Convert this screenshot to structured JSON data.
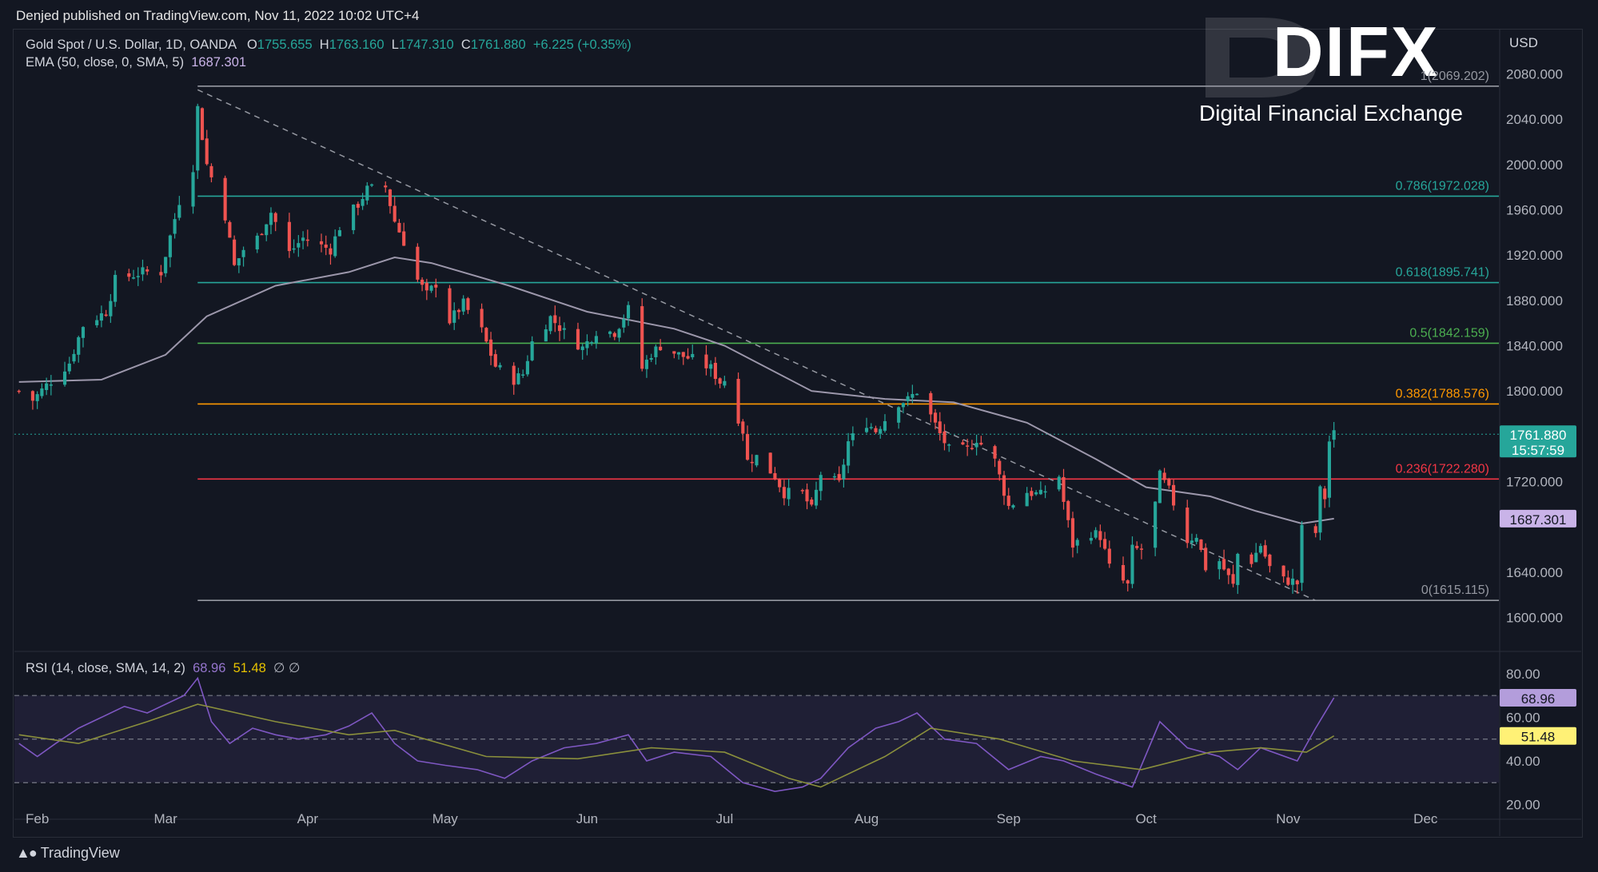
{
  "header": {
    "publisher_line": "Denjed published on TradingView.com, Nov 11, 2022 10:02 UTC+4"
  },
  "legend": {
    "symbol_line": "Gold Spot / U.S. Dollar, 1D, OANDA",
    "o_label": "O",
    "o_value": "1755.655",
    "h_label": "H",
    "h_value": "1763.160",
    "l_label": "L",
    "l_value": "1747.310",
    "c_label": "C",
    "c_value": "1761.880",
    "change": "+6.225 (+0.35%)",
    "ema_label": "EMA (50, close, 0, SMA, 5)",
    "ema_value": "1687.301"
  },
  "currency": "USD",
  "watermark": {
    "brand": "DIFX",
    "tagline": "Digital Financial Exchange"
  },
  "footer": {
    "logo_text": "TradingView",
    "logo_icon": "tradingview-logo-icon"
  },
  "colors": {
    "background": "#131722",
    "up": "#26a69a",
    "down": "#ef5350",
    "ema": "#9c97ab",
    "rsi": "#7e57c2",
    "rsi_ma": "#8a8f3c",
    "price_tag": "#26a69a",
    "ema_tag": "#c9b3e8",
    "rsi_tag": "#b39ddb",
    "rsi_ma_tag": "#fff176"
  },
  "chart_data": {
    "type": "candlestick",
    "title": "Gold Spot / U.S. Dollar, 1D, OANDA",
    "ylim": [
      1575,
      2110
    ],
    "yticks": [
      {
        "value": 2080,
        "label": "2080.000"
      },
      {
        "value": 2040,
        "label": "2040.000"
      },
      {
        "value": 2000,
        "label": "2000.000"
      },
      {
        "value": 1960,
        "label": "1960.000"
      },
      {
        "value": 1920,
        "label": "1920.000"
      },
      {
        "value": 1880,
        "label": "1880.000"
      },
      {
        "value": 1840,
        "label": "1840.000"
      },
      {
        "value": 1800,
        "label": "1800.000"
      },
      {
        "value": 1720,
        "label": "1720.000"
      },
      {
        "value": 1640,
        "label": "1640.000"
      },
      {
        "value": 1600,
        "label": "1600.000"
      }
    ],
    "xlim": [
      "2022-01-27",
      "2022-12-17"
    ],
    "x_ticks": [
      {
        "date": "2022-02-01",
        "label": "Feb"
      },
      {
        "date": "2022-03-01",
        "label": "Mar"
      },
      {
        "date": "2022-04-01",
        "label": "Apr"
      },
      {
        "date": "2022-05-01",
        "label": "May"
      },
      {
        "date": "2022-06-01",
        "label": "Jun"
      },
      {
        "date": "2022-07-01",
        "label": "Jul"
      },
      {
        "date": "2022-08-01",
        "label": "Aug"
      },
      {
        "date": "2022-09-01",
        "label": "Sep"
      },
      {
        "date": "2022-10-01",
        "label": "Oct"
      },
      {
        "date": "2022-11-01",
        "label": "Nov"
      },
      {
        "date": "2022-12-01",
        "label": "Dec"
      }
    ],
    "fib_start": "2022-03-08",
    "fib_levels": [
      {
        "label": "1(2069.202)",
        "value": 2069.202,
        "color": "#9598a1"
      },
      {
        "label": "0.786(1972.028)",
        "value": 1972.028,
        "color": "#26a69a"
      },
      {
        "label": "0.618(1895.741)",
        "value": 1895.741,
        "color": "#26a69a"
      },
      {
        "label": "0.5(1842.159)",
        "value": 1842.159,
        "color": "#4caf50"
      },
      {
        "label": "0.382(1788.576)",
        "value": 1788.576,
        "color": "#ff9800"
      },
      {
        "label": "0.236(1722.280)",
        "value": 1722.28,
        "color": "#f23645"
      },
      {
        "label": "0(1615.115)",
        "value": 1615.115,
        "color": "#9598a1"
      }
    ],
    "trendline": [
      [
        "2022-03-08",
        2066
      ],
      [
        "2022-11-07",
        1615
      ]
    ],
    "last_price": {
      "value": 1761.88,
      "label": "1761.880",
      "countdown": "15:57:59"
    },
    "ema_tag": {
      "value": 1687.301,
      "label": "1687.301"
    },
    "anchors": [
      [
        "2022-01-28",
        1800
      ],
      [
        "2022-01-31",
        1792
      ],
      [
        "2022-02-03",
        1805
      ],
      [
        "2022-02-08",
        1825
      ],
      [
        "2022-02-11",
        1858
      ],
      [
        "2022-02-16",
        1870
      ],
      [
        "2022-02-18",
        1898
      ],
      [
        "2022-02-24",
        1905
      ],
      [
        "2022-02-28",
        1905
      ],
      [
        "2022-03-04",
        1968
      ],
      [
        "2022-03-07",
        1998
      ],
      [
        "2022-03-08",
        2050
      ],
      [
        "2022-03-10",
        2000
      ],
      [
        "2022-03-14",
        1955
      ],
      [
        "2022-03-16",
        1910
      ],
      [
        "2022-03-18",
        1925
      ],
      [
        "2022-03-21",
        1935
      ],
      [
        "2022-03-24",
        1958
      ],
      [
        "2022-03-28",
        1922
      ],
      [
        "2022-03-31",
        1935
      ],
      [
        "2022-04-04",
        1928
      ],
      [
        "2022-04-06",
        1925
      ],
      [
        "2022-04-08",
        1945
      ],
      [
        "2022-04-12",
        1965
      ],
      [
        "2022-04-14",
        1978
      ],
      [
        "2022-04-18",
        1980
      ],
      [
        "2022-04-20",
        1950
      ],
      [
        "2022-04-22",
        1932
      ],
      [
        "2022-04-25",
        1898
      ],
      [
        "2022-04-27",
        1885
      ],
      [
        "2022-04-29",
        1895
      ],
      [
        "2022-05-02",
        1862
      ],
      [
        "2022-05-05",
        1877
      ],
      [
        "2022-05-09",
        1853
      ],
      [
        "2022-05-12",
        1822
      ],
      [
        "2022-05-16",
        1810
      ],
      [
        "2022-05-18",
        1815
      ],
      [
        "2022-05-20",
        1843
      ],
      [
        "2022-05-24",
        1865
      ],
      [
        "2022-05-27",
        1852
      ],
      [
        "2022-05-31",
        1838
      ],
      [
        "2022-06-03",
        1853
      ],
      [
        "2022-06-07",
        1852
      ],
      [
        "2022-06-10",
        1872
      ],
      [
        "2022-06-13",
        1820
      ],
      [
        "2022-06-15",
        1833
      ],
      [
        "2022-06-17",
        1840
      ],
      [
        "2022-06-21",
        1832
      ],
      [
        "2022-06-24",
        1828
      ],
      [
        "2022-06-28",
        1820
      ],
      [
        "2022-06-30",
        1808
      ],
      [
        "2022-07-01",
        1810
      ],
      [
        "2022-07-05",
        1765
      ],
      [
        "2022-07-06",
        1738
      ],
      [
        "2022-07-08",
        1742
      ],
      [
        "2022-07-12",
        1725
      ],
      [
        "2022-07-14",
        1710
      ],
      [
        "2022-07-18",
        1710
      ],
      [
        "2022-07-20",
        1695
      ],
      [
        "2022-07-22",
        1727
      ],
      [
        "2022-07-26",
        1718
      ],
      [
        "2022-07-28",
        1755
      ],
      [
        "2022-08-01",
        1772
      ],
      [
        "2022-08-03",
        1765
      ],
      [
        "2022-08-05",
        1775
      ],
      [
        "2022-08-08",
        1790
      ],
      [
        "2022-08-10",
        1792
      ],
      [
        "2022-08-12",
        1800
      ],
      [
        "2022-08-15",
        1778
      ],
      [
        "2022-08-17",
        1762
      ],
      [
        "2022-08-19",
        1748
      ],
      [
        "2022-08-23",
        1748
      ],
      [
        "2022-08-25",
        1758
      ],
      [
        "2022-08-29",
        1738
      ],
      [
        "2022-09-01",
        1698
      ],
      [
        "2022-09-05",
        1711
      ],
      [
        "2022-09-08",
        1708
      ],
      [
        "2022-09-12",
        1725
      ],
      [
        "2022-09-13",
        1702
      ],
      [
        "2022-09-15",
        1664
      ],
      [
        "2022-09-19",
        1675
      ],
      [
        "2022-09-21",
        1672
      ],
      [
        "2022-09-23",
        1644
      ],
      [
        "2022-09-27",
        1628
      ],
      [
        "2022-09-28",
        1660
      ],
      [
        "2022-09-30",
        1660
      ],
      [
        "2022-10-03",
        1700
      ],
      [
        "2022-10-04",
        1725
      ],
      [
        "2022-10-06",
        1712
      ],
      [
        "2022-10-10",
        1668
      ],
      [
        "2022-10-12",
        1673
      ],
      [
        "2022-10-14",
        1644
      ],
      [
        "2022-10-17",
        1650
      ],
      [
        "2022-10-20",
        1628
      ],
      [
        "2022-10-21",
        1656
      ],
      [
        "2022-10-24",
        1650
      ],
      [
        "2022-10-26",
        1664
      ],
      [
        "2022-10-28",
        1644
      ],
      [
        "2022-10-31",
        1633
      ],
      [
        "2022-11-02",
        1632
      ],
      [
        "2022-11-03",
        1630
      ],
      [
        "2022-11-04",
        1678
      ],
      [
        "2022-11-07",
        1675
      ],
      [
        "2022-11-08",
        1712
      ],
      [
        "2022-11-09",
        1706
      ],
      [
        "2022-11-10",
        1755.655
      ],
      [
        "2022-11-11",
        1761.88
      ]
    ],
    "ema_series": [
      [
        "2022-01-28",
        1808
      ],
      [
        "2022-02-15",
        1810
      ],
      [
        "2022-03-01",
        1832
      ],
      [
        "2022-03-10",
        1866
      ],
      [
        "2022-03-25",
        1893
      ],
      [
        "2022-04-10",
        1905
      ],
      [
        "2022-04-20",
        1918
      ],
      [
        "2022-04-28",
        1913
      ],
      [
        "2022-05-15",
        1893
      ],
      [
        "2022-06-01",
        1870
      ],
      [
        "2022-06-20",
        1855
      ],
      [
        "2022-07-01",
        1840
      ],
      [
        "2022-07-20",
        1800
      ],
      [
        "2022-08-05",
        1793
      ],
      [
        "2022-08-20",
        1790
      ],
      [
        "2022-09-05",
        1772
      ],
      [
        "2022-09-20",
        1740
      ],
      [
        "2022-10-01",
        1715
      ],
      [
        "2022-10-15",
        1707
      ],
      [
        "2022-10-25",
        1694
      ],
      [
        "2022-11-04",
        1683
      ],
      [
        "2022-11-11",
        1687.301
      ]
    ],
    "rsi": {
      "label": "RSI (14, close, SMA, 14, 2)",
      "rsi_value": "68.96",
      "ma_value": "51.48",
      "ylim": [
        18,
        84
      ],
      "yticks": [
        {
          "value": 80,
          "label": "80.00"
        },
        {
          "value": 60,
          "label": "60.00"
        },
        {
          "value": 40,
          "label": "40.00"
        },
        {
          "value": 20,
          "label": "20.00"
        }
      ],
      "bands": [
        70,
        50,
        30
      ],
      "rsi_series": [
        [
          "2022-01-28",
          48
        ],
        [
          "2022-02-01",
          42
        ],
        [
          "2022-02-05",
          48
        ],
        [
          "2022-02-10",
          55
        ],
        [
          "2022-02-15",
          60
        ],
        [
          "2022-02-20",
          65
        ],
        [
          "2022-02-25",
          62
        ],
        [
          "2022-03-01",
          66
        ],
        [
          "2022-03-05",
          70
        ],
        [
          "2022-03-08",
          78
        ],
        [
          "2022-03-11",
          58
        ],
        [
          "2022-03-15",
          48
        ],
        [
          "2022-03-20",
          55
        ],
        [
          "2022-03-25",
          52
        ],
        [
          "2022-03-30",
          50
        ],
        [
          "2022-04-05",
          52
        ],
        [
          "2022-04-10",
          56
        ],
        [
          "2022-04-15",
          62
        ],
        [
          "2022-04-20",
          48
        ],
        [
          "2022-04-25",
          40
        ],
        [
          "2022-05-01",
          38
        ],
        [
          "2022-05-08",
          36
        ],
        [
          "2022-05-14",
          32
        ],
        [
          "2022-05-20",
          40
        ],
        [
          "2022-05-27",
          46
        ],
        [
          "2022-06-03",
          48
        ],
        [
          "2022-06-10",
          52
        ],
        [
          "2022-06-14",
          40
        ],
        [
          "2022-06-20",
          44
        ],
        [
          "2022-06-28",
          42
        ],
        [
          "2022-07-05",
          30
        ],
        [
          "2022-07-12",
          26
        ],
        [
          "2022-07-18",
          28
        ],
        [
          "2022-07-22",
          32
        ],
        [
          "2022-07-28",
          46
        ],
        [
          "2022-08-03",
          55
        ],
        [
          "2022-08-08",
          58
        ],
        [
          "2022-08-12",
          62
        ],
        [
          "2022-08-18",
          50
        ],
        [
          "2022-08-25",
          48
        ],
        [
          "2022-09-01",
          36
        ],
        [
          "2022-09-08",
          42
        ],
        [
          "2022-09-13",
          40
        ],
        [
          "2022-09-20",
          34
        ],
        [
          "2022-09-28",
          28
        ],
        [
          "2022-10-04",
          58
        ],
        [
          "2022-10-10",
          46
        ],
        [
          "2022-10-17",
          42
        ],
        [
          "2022-10-21",
          36
        ],
        [
          "2022-10-26",
          46
        ],
        [
          "2022-11-03",
          40
        ],
        [
          "2022-11-07",
          55
        ],
        [
          "2022-11-11",
          68.96
        ]
      ],
      "ma_series": [
        [
          "2022-01-28",
          52
        ],
        [
          "2022-02-10",
          48
        ],
        [
          "2022-02-25",
          58
        ],
        [
          "2022-03-08",
          66
        ],
        [
          "2022-03-25",
          58
        ],
        [
          "2022-04-10",
          52
        ],
        [
          "2022-04-20",
          54
        ],
        [
          "2022-05-10",
          42
        ],
        [
          "2022-05-30",
          41
        ],
        [
          "2022-06-15",
          46
        ],
        [
          "2022-07-01",
          44
        ],
        [
          "2022-07-15",
          32
        ],
        [
          "2022-07-22",
          28
        ],
        [
          "2022-08-05",
          42
        ],
        [
          "2022-08-15",
          55
        ],
        [
          "2022-08-30",
          50
        ],
        [
          "2022-09-15",
          40
        ],
        [
          "2022-09-30",
          36
        ],
        [
          "2022-10-15",
          44
        ],
        [
          "2022-10-26",
          46
        ],
        [
          "2022-11-05",
          44
        ],
        [
          "2022-11-11",
          51.48
        ]
      ]
    }
  }
}
